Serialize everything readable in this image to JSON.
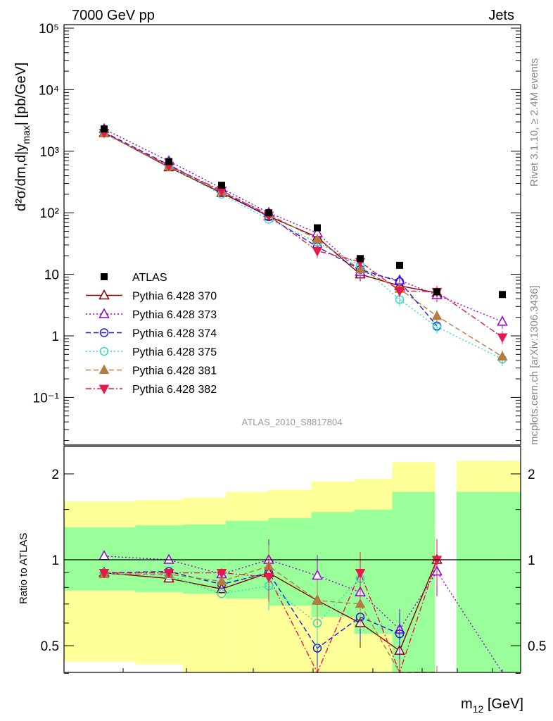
{
  "header": {
    "left": "7000 GeV pp",
    "right": "Jets"
  },
  "side_labels": {
    "rivet": "Rivet 3.1.10, ≥ 2.4M events",
    "mcplots": "mcplots.cern.ch [arXiv:1306.3436]"
  },
  "analysis_id": "ATLAS_2010_S8817804",
  "axis_labels": {
    "x": "m",
    "x_sub": "12",
    "x_unit": " [GeV]",
    "y_main": "d²σ/dm,d|y",
    "y_main_sub": "max",
    "y_main_tail": "| [pb/GeV]",
    "y_ratio": "Ratio to ATLAS"
  },
  "main_ticks": [
    "10⁻¹",
    "1",
    "10",
    "10²",
    "10³",
    "10⁴",
    "10⁵"
  ],
  "ratio_ticks": [
    "0.5",
    "1",
    "2"
  ],
  "chart_data": {
    "type": "scatter",
    "yscale": "log",
    "ylim": [
      0.015,
      120000
    ],
    "ratio_ylim": [
      0.33,
      2.35
    ],
    "legend_position": "bottom-left",
    "x_index": [
      1,
      2,
      3,
      4,
      5,
      6,
      7,
      8,
      9
    ],
    "reference": {
      "name": "ATLAS",
      "values": [
        2300,
        680,
        280,
        100,
        57,
        18,
        14,
        5.2,
        4.7
      ]
    },
    "series": [
      {
        "name": "Pythia 6.428 370",
        "color": "#8b0000",
        "marker": "triangle-open",
        "dash": "solid",
        "values": [
          2000,
          550,
          210,
          88,
          40,
          10,
          6.5,
          5,
          null
        ],
        "ratio": [
          0.9,
          0.86,
          0.79,
          0.9,
          0.72,
          0.6,
          0.48,
          1.0,
          null
        ]
      },
      {
        "name": "Pythia 6.428 373",
        "color": "#9400d3",
        "marker": "triangle-open",
        "dash": "dot",
        "values": [
          2300,
          690,
          250,
          100,
          47,
          11,
          8,
          4.6,
          1.7
        ],
        "ratio": [
          1.03,
          1.0,
          0.89,
          1.0,
          0.88,
          0.77,
          0.57,
          0.91,
          0.35
        ]
      },
      {
        "name": "Pythia 6.428 374",
        "color": "#1a1ad8",
        "marker": "circle-open",
        "dash": "dash",
        "values": [
          2050,
          600,
          220,
          86,
          28,
          12,
          7.6,
          1.45,
          null
        ],
        "ratio": [
          0.9,
          0.91,
          0.82,
          0.9,
          0.49,
          0.63,
          0.55,
          null,
          null
        ]
      },
      {
        "name": "Pythia 6.428 375",
        "color": "#2fd8c8",
        "marker": "circle-open",
        "dash": "dot",
        "values": [
          2000,
          560,
          200,
          78,
          33,
          14,
          3.9,
          1.4,
          0.42
        ],
        "ratio": [
          0.9,
          0.88,
          0.76,
          0.81,
          0.6,
          0.86,
          null,
          null,
          null
        ]
      },
      {
        "name": "Pythia 6.428 381",
        "color": "#b57b43",
        "marker": "triangle-filled",
        "dash": "dash",
        "values": [
          1950,
          570,
          220,
          95,
          37,
          12,
          5.8,
          2.1,
          0.46
        ],
        "ratio": [
          0.89,
          0.89,
          0.84,
          0.95,
          0.72,
          0.7,
          0.36,
          0.36,
          null
        ]
      },
      {
        "name": "Pythia 6.428 382",
        "color": "#e8184a",
        "marker": "triangle-down-filled",
        "dash": "dashdot",
        "values": [
          2000,
          580,
          230,
          90,
          24,
          16,
          5.4,
          5.2,
          0.95
        ],
        "ratio": [
          0.9,
          0.9,
          0.9,
          0.87,
          0.36,
          0.9,
          0.38,
          1.0,
          null
        ]
      }
    ],
    "bands": {
      "edges": [
        0,
        1.5,
        2.5,
        3.4,
        4.3,
        5.2,
        6.1,
        6.9,
        7.8,
        8.25,
        9.1,
        9.6
      ],
      "yellow_lo": [
        0.44,
        0.43,
        0.39,
        0.33,
        0.33,
        0.33,
        0.33,
        0.33,
        null,
        0.33,
        0.33
      ],
      "yellow_hi": [
        1.6,
        1.62,
        1.65,
        1.73,
        1.76,
        1.88,
        1.92,
        2.2,
        null,
        2.22,
        2.22
      ],
      "green_lo": [
        0.78,
        0.77,
        0.76,
        0.73,
        0.69,
        0.63,
        0.55,
        0.33,
        null,
        0.33,
        0.33
      ],
      "green_hi": [
        1.3,
        1.32,
        1.33,
        1.37,
        1.4,
        1.47,
        1.5,
        1.73,
        null,
        1.73,
        1.73
      ]
    }
  }
}
